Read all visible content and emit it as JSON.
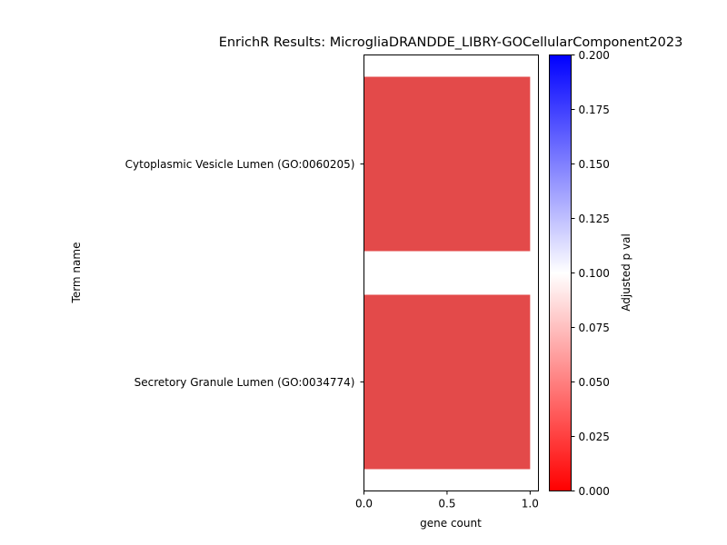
{
  "chart_data": {
    "type": "bar",
    "orientation": "horizontal",
    "title": "EnrichR Results: MicrogliaDRANDDE_LIBRY-GOCellularComponent2023",
    "xlabel": "gene count",
    "ylabel": "Term name",
    "xlim": [
      0,
      1.05
    ],
    "x_ticks": [
      "0.0",
      "0.5",
      "1.0"
    ],
    "categories": [
      "Cytoplasmic Vesicle Lumen (GO:0060205)",
      "Secretory Granule Lumen (GO:0034774)"
    ],
    "values": [
      1,
      1
    ],
    "bar_color": "#e34a4a",
    "colorbar": {
      "label": "Adjusted p val",
      "range": [
        0,
        0.2
      ],
      "ticks": [
        "0.000",
        "0.025",
        "0.050",
        "0.075",
        "0.100",
        "0.125",
        "0.150",
        "0.175",
        "0.200"
      ],
      "colors": [
        "#ff0000",
        "#ffffff",
        "#0000ff"
      ]
    },
    "grid": false,
    "legend": "none"
  }
}
